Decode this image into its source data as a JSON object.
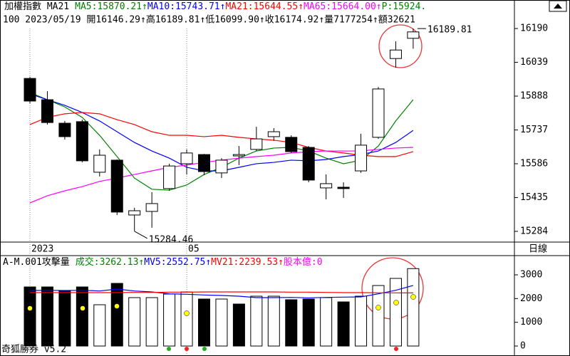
{
  "chart_data": [
    {
      "type": "candlestick",
      "title": "加權指數 MA21",
      "indicators": [
        {
          "text": "MA5:15870.21↑",
          "color": "#008000"
        },
        {
          "text": "MA10:15743.71↑",
          "color": "#0000ff"
        },
        {
          "text": "MA21:15644.55↑",
          "color": "#ff0000"
        },
        {
          "text": "MA65:15664.00↑",
          "color": "#ff00ff"
        },
        {
          "text": "P:15924.",
          "color": "#008000"
        }
      ],
      "subtitle": "100 2023/05/19 開16146.29↑高16189.81↑低16099.90↑收16174.92↑量7177254↑額32621",
      "categories": [
        "2023",
        null,
        null,
        null,
        null,
        null,
        null,
        null,
        null,
        "05",
        null,
        null,
        null,
        null,
        null,
        null,
        null,
        null,
        null,
        null,
        null,
        null,
        null
      ],
      "open": [
        15967,
        15872,
        15767,
        15774,
        15548,
        15602,
        15357,
        15373,
        15475,
        15586,
        15627,
        15545,
        15621,
        15650,
        15707,
        15704,
        15659,
        15478,
        15481,
        15554,
        15704,
        16056,
        16146.29
      ],
      "high": [
        15974,
        15910,
        15777,
        15783,
        15650,
        15605,
        15389,
        15459,
        15586,
        15650,
        15630,
        15611,
        15665,
        15751,
        15745,
        15713,
        15665,
        15538,
        15503,
        15720,
        15929,
        16133,
        16189.81
      ],
      "low": [
        15856,
        15761,
        15694,
        15592,
        15529,
        15357,
        15284.46,
        15300,
        15465,
        15538,
        15535,
        15522,
        15580,
        15643,
        15688,
        15634,
        15503,
        15427,
        15433,
        15545,
        15697,
        16015,
        16099.9
      ],
      "close": [
        15866,
        15770,
        15707,
        15599,
        15624,
        15370,
        15376,
        15408,
        15576,
        15634,
        15551,
        15602,
        15627,
        15697,
        15729,
        15640,
        15513,
        15497,
        15475,
        15669,
        15920,
        16094,
        16174.92
      ],
      "series": [
        {
          "color": "#008000",
          "values": [
            15904,
            15872,
            15840,
            15793,
            15713,
            15618,
            15522,
            15472,
            15468,
            15491,
            15538,
            15570,
            15611,
            15643,
            15656,
            15659,
            15643,
            15611,
            15586,
            15602,
            15665,
            15777,
            15872
          ]
        },
        {
          "color": "#0000ff",
          "values": [
            15898,
            15872,
            15847,
            15815,
            15777,
            15729,
            15681,
            15643,
            15611,
            15570,
            15554,
            15554,
            15570,
            15586,
            15592,
            15602,
            15599,
            15605,
            15618,
            15627,
            15643,
            15681,
            15735
          ]
        },
        {
          "color": "#ff0000",
          "values": [
            15761,
            15793,
            15809,
            15815,
            15809,
            15783,
            15761,
            15729,
            15713,
            15713,
            15707,
            15713,
            15704,
            15697,
            15691,
            15681,
            15659,
            15643,
            15634,
            15624,
            15618,
            15618,
            15640
          ]
        },
        {
          "color": "#ff00ff",
          "values": [
            15411,
            15443,
            15465,
            15484,
            15507,
            15522,
            15538,
            15554,
            15570,
            15580,
            15592,
            15602,
            15611,
            15618,
            15624,
            15634,
            15640,
            15643,
            15643,
            15643,
            15650,
            15656,
            15659
          ]
        }
      ],
      "ylim": [
        15236,
        16222
      ],
      "yticks": [
        16190,
        16039,
        15888,
        15737,
        15586,
        15435,
        15284
      ],
      "period": "日線"
    },
    {
      "type": "bar",
      "title": "A-M.001攻擊量",
      "indicators": [
        {
          "text": "成交:3262.13↑",
          "color": "#008000"
        },
        {
          "text": "MV5:2552.75↑",
          "color": "#0000ff"
        },
        {
          "text": "MV21:2239.53↑",
          "color": "#ff0000"
        },
        {
          "text": "股本億:0",
          "color": "#ff00ff"
        }
      ],
      "values": [
        2490,
        2490,
        2310,
        2490,
        1740,
        2640,
        2040,
        2040,
        2190,
        2280,
        1980,
        1980,
        1770,
        2100,
        2100,
        1950,
        1980,
        2040,
        1860,
        2100,
        2550,
        2850,
        3262.13
      ],
      "fills": [
        "#000000",
        "#000000",
        "#000000",
        "#000000",
        "#ffffff",
        "#000000",
        "#ffffff",
        "#ffffff",
        "#ffffff",
        "#ffffff",
        "#000000",
        "#ffffff",
        "#000000",
        "#ffffff",
        "#ffffff",
        "#000000",
        "#000000",
        "#ffffff",
        "#000000",
        "#ffffff",
        "#ffffff",
        "#ffffff",
        "#ffffff"
      ],
      "series": [
        {
          "color": "#0000ff",
          "values": [
            2340,
            2350,
            2340,
            2350,
            2320,
            2400,
            2320,
            2280,
            2200,
            2180,
            2150,
            2130,
            2100,
            2040,
            2040,
            2050,
            2030,
            2050,
            2060,
            2070,
            2200,
            2350,
            2552.75
          ]
        },
        {
          "color": "#ff0000",
          "values": [
            2250,
            2250,
            2250,
            2250,
            2250,
            2250,
            2260,
            2260,
            2270,
            2270,
            2280,
            2280,
            2280,
            2280,
            2280,
            2270,
            2270,
            2260,
            2250,
            2250,
            2240,
            2240,
            2239.53
          ]
        }
      ],
      "ylim": [
        -120,
        3720
      ],
      "yticks": [
        3000,
        2000,
        1000,
        0
      ]
    }
  ],
  "footer": "奇狐勝券 v5.2"
}
